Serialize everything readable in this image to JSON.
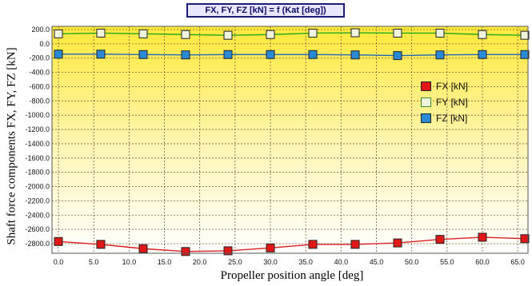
{
  "chart_data": {
    "type": "line",
    "title": "FX, FY, FZ [kN] = f (Kat [deg])",
    "xlabel": "Propeller position angle [deg]",
    "ylabel": "Shaft force components FX, FY, FZ [kN]",
    "xlim": [
      0,
      66
    ],
    "ylim": [
      -2900,
      250
    ],
    "x_ticks": [
      "0.0",
      "5.0",
      "10.0",
      "15.0",
      "20.0",
      "25.0",
      "30.0",
      "35.0",
      "40.0",
      "45.0",
      "50.0",
      "55.0",
      "60.0",
      "65.0"
    ],
    "y_ticks": [
      "200.0",
      "0.0",
      "-200.0",
      "-400.0",
      "-600.0",
      "-800.0",
      "-1000.0",
      "-1200.0",
      "-1400.0",
      "-1600.0",
      "-1800.0",
      "-2000.0",
      "-2200.0",
      "-2400.0",
      "-2600.0",
      "-2800.0"
    ],
    "grid": true,
    "legend_position": "right",
    "x": [
      0,
      6,
      12,
      18,
      24,
      30,
      36,
      42,
      48,
      54,
      60,
      66
    ],
    "series": [
      {
        "name": "FX [kN]",
        "color": "#dd2020",
        "marker_fill": "#e01818",
        "values": [
          -2770,
          -2810,
          -2870,
          -2910,
          -2900,
          -2860,
          -2810,
          -2810,
          -2790,
          -2740,
          -2710,
          -2730
        ]
      },
      {
        "name": "FY [kN]",
        "color": "#22aa22",
        "marker_fill": "#eef5dc",
        "values": [
          140,
          150,
          140,
          130,
          120,
          130,
          150,
          155,
          150,
          150,
          130,
          120
        ]
      },
      {
        "name": "FZ [kN]",
        "color": "#1f66b8",
        "marker_fill": "#2a8ad6",
        "values": [
          -145,
          -145,
          -150,
          -155,
          -150,
          -150,
          -150,
          -155,
          -165,
          -155,
          -150,
          -150
        ]
      }
    ]
  }
}
